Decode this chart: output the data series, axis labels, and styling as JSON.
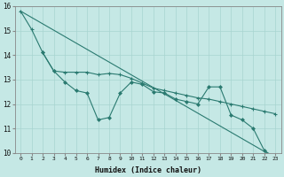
{
  "xlabel": "Humidex (Indice chaleur)",
  "bg_color": "#c5e8e5",
  "grid_color": "#a8d4d0",
  "line_color": "#2a7a70",
  "line1_y": [
    15.8,
    15.05,
    14.1,
    13.35,
    12.9,
    12.55,
    12.45,
    11.35,
    11.45,
    12.45,
    12.9,
    12.8,
    12.5,
    12.45,
    12.2,
    12.1,
    12.0,
    12.7,
    12.7,
    11.55,
    11.35,
    11.0,
    10.1,
    9.8
  ],
  "line2_y": [
    15.8,
    15.05,
    14.1,
    13.35,
    13.3,
    13.3,
    13.3,
    13.2,
    13.25,
    13.2,
    13.05,
    12.85,
    12.65,
    12.55,
    12.45,
    12.35,
    12.25,
    12.2,
    12.1,
    12.0,
    11.9,
    11.8,
    11.7,
    11.6
  ],
  "line3_y_start": 15.8,
  "line3_y_end": 9.8,
  "ylim": [
    10,
    16
  ],
  "xlim_start": 0,
  "xlim_end": 23,
  "yticks": [
    10,
    11,
    12,
    13,
    14,
    15,
    16
  ],
  "xticks": [
    0,
    1,
    2,
    3,
    4,
    5,
    6,
    7,
    8,
    9,
    10,
    11,
    12,
    13,
    14,
    15,
    16,
    17,
    18,
    19,
    20,
    21,
    22,
    23
  ]
}
